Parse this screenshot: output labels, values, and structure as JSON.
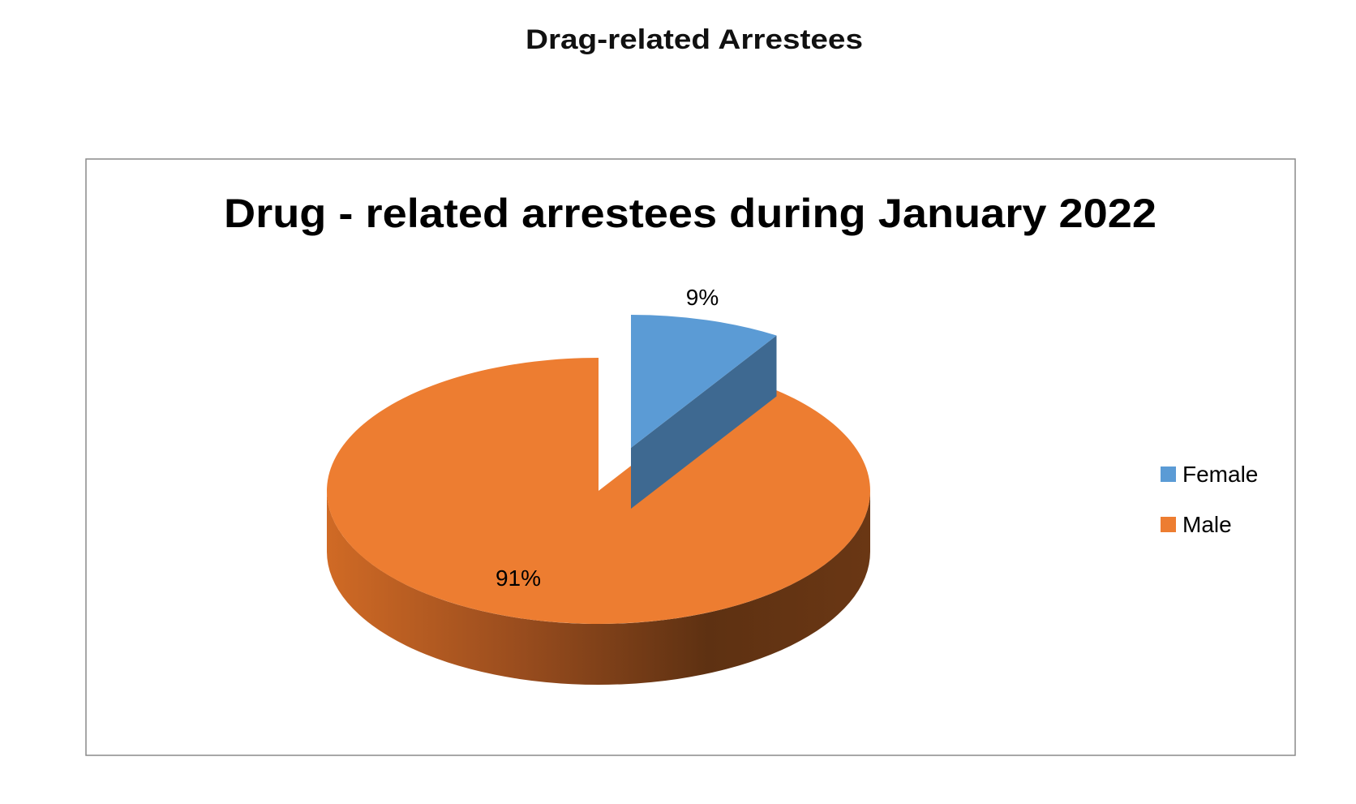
{
  "page_title": "Drag-related Arrestees",
  "chart_data": {
    "type": "pie",
    "style": "3d-exploded",
    "title": "Drug - related arrestees during January 2022",
    "categories": [
      "Female",
      "Male"
    ],
    "values": [
      9,
      91
    ],
    "data_labels": [
      "9%",
      "91%"
    ],
    "colors": [
      "#5B9BD5",
      "#ED7D31"
    ],
    "exploded": [
      "Female"
    ],
    "legend": {
      "position": "right",
      "entries": [
        "Female",
        "Male"
      ]
    }
  }
}
